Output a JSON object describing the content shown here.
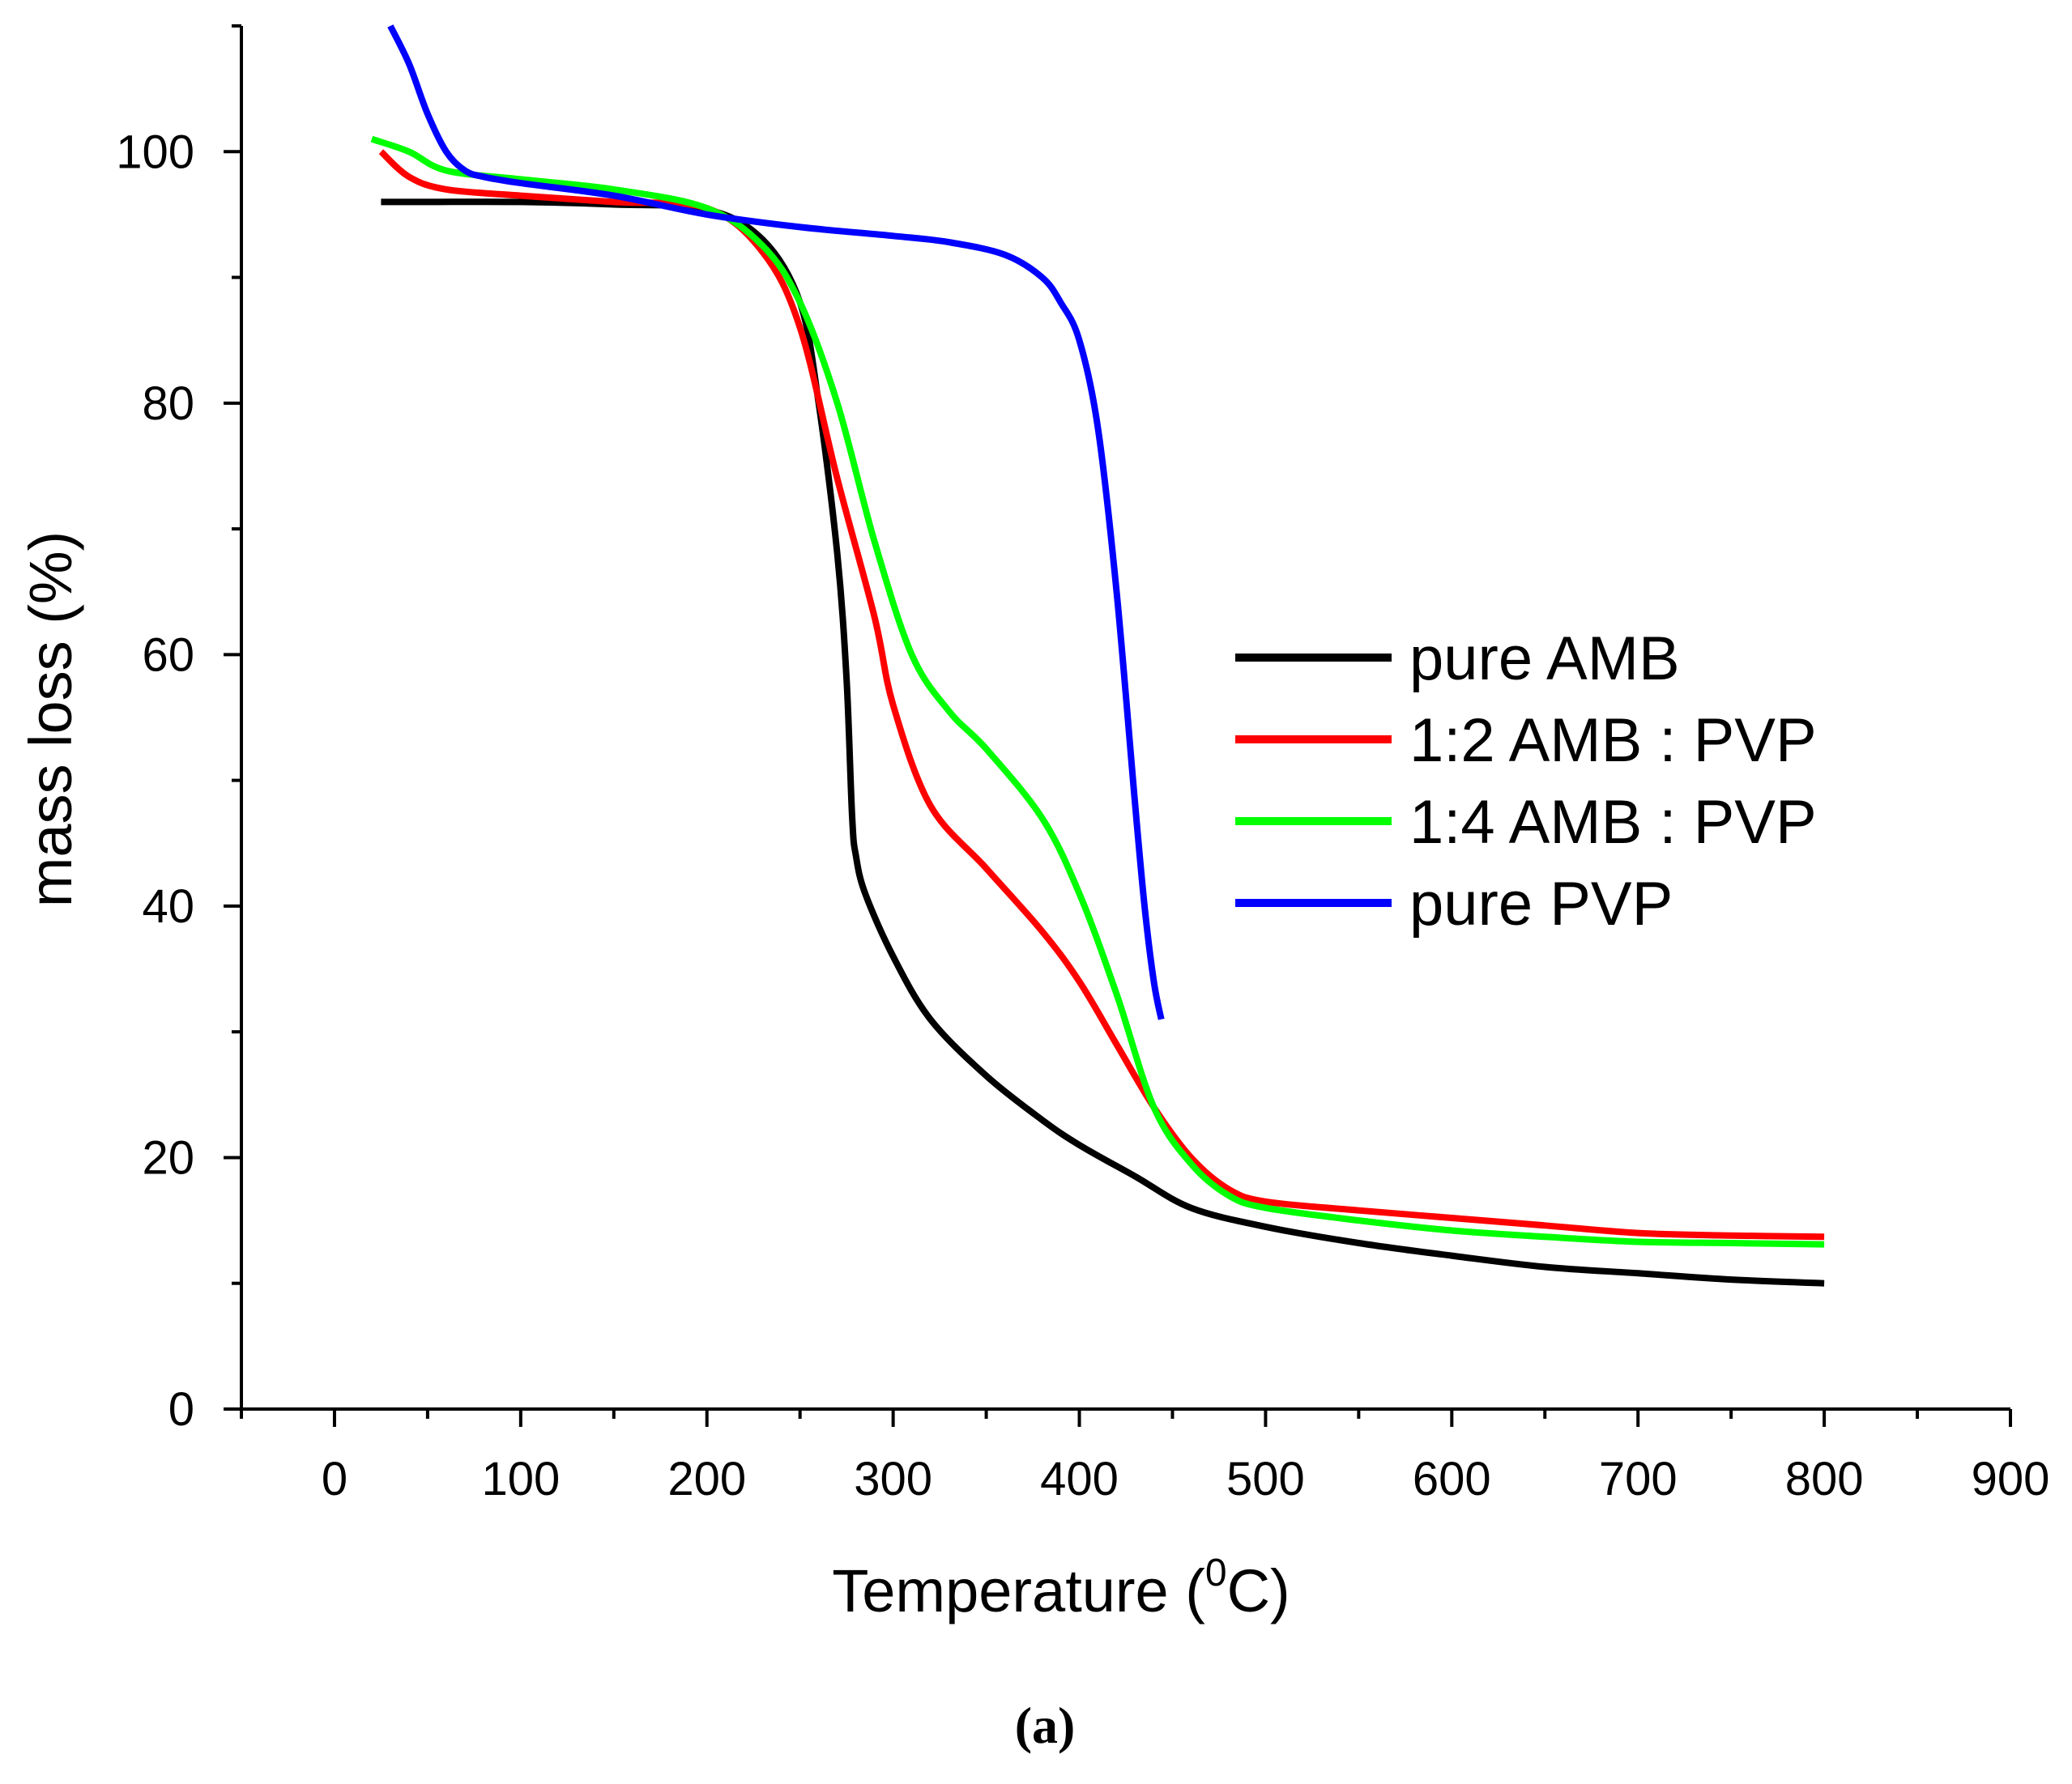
{
  "chart_data": {
    "type": "line",
    "title": "",
    "xlabel": "Temperature (",
    "xlabel_sup": "0",
    "xlabel_tail": "C)",
    "ylabel": "mass loss (%)",
    "xlim": [
      -50,
      900
    ],
    "ylim": [
      0,
      110
    ],
    "x_ticks": [
      0,
      100,
      200,
      300,
      400,
      500,
      600,
      700,
      800,
      900
    ],
    "y_ticks": [
      0,
      20,
      40,
      60,
      80,
      100
    ],
    "grid": false,
    "legend_position": "center-right",
    "caption": "(a)",
    "series": [
      {
        "name": "pure AMB",
        "color": "#000000",
        "x": [
          25,
          50,
          100,
          150,
          200,
          230,
          250,
          260,
          270,
          275,
          278,
          280,
          285,
          300,
          320,
          350,
          380,
          400,
          430,
          460,
          500,
          550,
          600,
          650,
          700,
          750,
          800
        ],
        "y": [
          96,
          96,
          96,
          95.8,
          95.4,
          93,
          88,
          80,
          68,
          58,
          47,
          44,
          41,
          36,
          31,
          26.5,
          23,
          21,
          18.5,
          16,
          14.5,
          13.2,
          12.2,
          11.3,
          10.8,
          10.3,
          10
        ]
      },
      {
        "name": "1:2 AMB : PVP",
        "color": "#ff0000",
        "x": [
          25,
          40,
          60,
          100,
          150,
          200,
          230,
          250,
          270,
          290,
          300,
          320,
          350,
          380,
          400,
          420,
          440,
          460,
          480,
          500,
          550,
          600,
          650,
          700,
          750,
          800
        ],
        "y": [
          100,
          98,
          97,
          96.5,
          96,
          95.5,
          92,
          86,
          74,
          63,
          56,
          48,
          43,
          38,
          34,
          29,
          24,
          20,
          17.5,
          16.5,
          15.8,
          15.2,
          14.6,
          14,
          13.8,
          13.7
        ]
      },
      {
        "name": "1:4 AMB : PVP",
        "color": "#00ff00",
        "x": [
          20,
          40,
          60,
          100,
          150,
          200,
          230,
          250,
          270,
          290,
          310,
          330,
          350,
          380,
          400,
          420,
          440,
          460,
          480,
          500,
          550,
          600,
          650,
          700,
          750,
          800
        ],
        "y": [
          101,
          100,
          98.5,
          97.8,
          97,
          95.5,
          92.5,
          88,
          80,
          69,
          60,
          55.5,
          52.5,
          47,
          41,
          33,
          24,
          19.5,
          17,
          16,
          15,
          14.2,
          13.7,
          13.3,
          13.2,
          13.1
        ]
      },
      {
        "name": "pure PVP",
        "color": "#0000ff",
        "x": [
          30,
          40,
          50,
          60,
          70,
          80,
          100,
          150,
          200,
          250,
          300,
          330,
          360,
          380,
          390,
          400,
          410,
          420,
          430,
          435,
          440,
          444
        ],
        "y": [
          110,
          107,
          103,
          100,
          98.5,
          98,
          97.5,
          96.5,
          95,
          94,
          93.3,
          92.8,
          91.8,
          90,
          88,
          85,
          78,
          65,
          48,
          40,
          34,
          31
        ]
      }
    ]
  }
}
